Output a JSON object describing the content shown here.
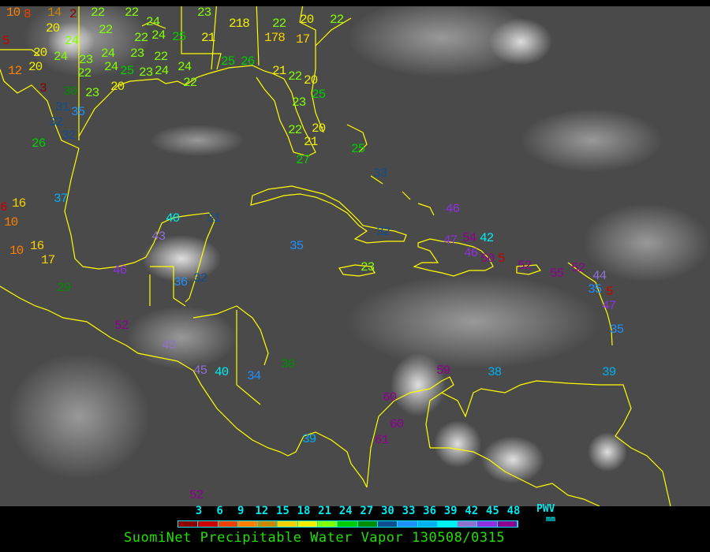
{
  "title": "SuomiNet Precipitable Water Vapor 130508/0315",
  "legend": {
    "unit_label": "PWV",
    "unit": "mm",
    "ticks": [
      "3",
      "6",
      "9",
      "12",
      "15",
      "18",
      "21",
      "24",
      "27",
      "30",
      "33",
      "36",
      "39",
      "42",
      "45",
      "48"
    ],
    "colors": [
      "#8b0000",
      "#cc0000",
      "#f04000",
      "#ff8000",
      "#cc8800",
      "#f8d000",
      "#f0f000",
      "#80ff00",
      "#00cc00",
      "#008c00",
      "#104c90",
      "#1e90ff",
      "#00b0f0",
      "#00f0f0",
      "#9070d0",
      "#9030e0",
      "#900090"
    ]
  },
  "coastline_color": "#ffff00",
  "stations": [
    "10",
    "8",
    "14",
    "2",
    "22",
    "22",
    "24",
    "23",
    "218",
    "22",
    "178",
    "20",
    "17",
    "22",
    "5",
    "20",
    "24",
    "22",
    "22",
    "24",
    "25",
    "21",
    "20",
    "24",
    "23",
    "24",
    "23",
    "22",
    "12",
    "20",
    "22",
    "24",
    "25",
    "23",
    "24",
    "24",
    "25",
    "26",
    "21",
    "22",
    "20",
    "3",
    "30",
    "23",
    "20",
    "22",
    "25",
    "23",
    "31",
    "35",
    "32",
    "32",
    "26",
    "20",
    "22",
    "21",
    "27",
    "16",
    "6",
    "10",
    "37",
    "16",
    "10",
    "17",
    "29",
    "40",
    "31",
    "43",
    "46",
    "36",
    "32",
    "35",
    "52",
    "43",
    "25",
    "33",
    "46",
    "32",
    "47",
    "54",
    "42",
    "46",
    "50",
    "5",
    "52",
    "55",
    "52",
    "44",
    "35",
    "5",
    "23",
    "47",
    "35",
    "45",
    "40",
    "34",
    "30",
    "59",
    "38",
    "39",
    "60",
    "60",
    "61",
    "39",
    "52"
  ]
}
